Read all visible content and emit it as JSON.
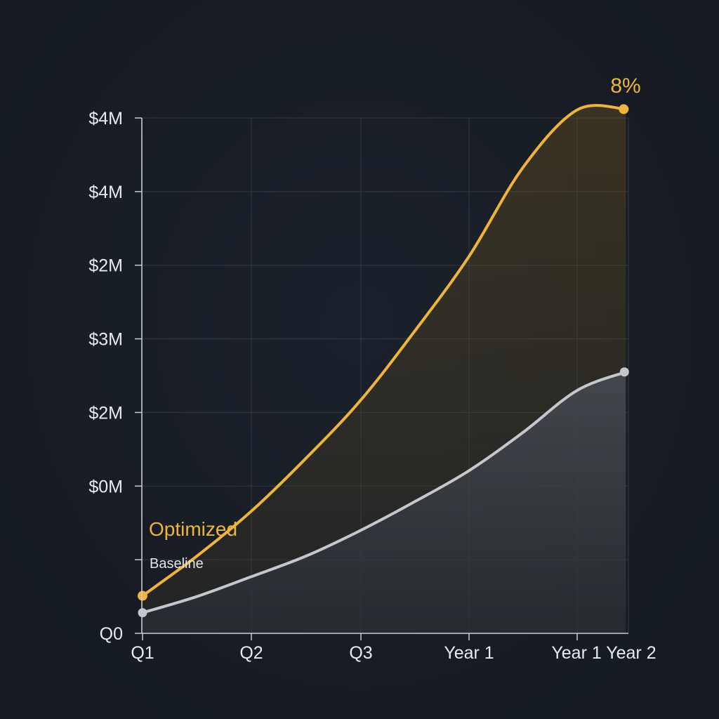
{
  "chart_data": {
    "type": "area",
    "title": "",
    "xlabel": "",
    "ylabel": "",
    "categories": [
      "Q1",
      "Q2",
      "Q3",
      "Year 1",
      "Year 1 Year 2"
    ],
    "y_tick_labels": [
      "Q0",
      "",
      "$0M",
      "$2M",
      "$3M",
      "$2M",
      "$4M",
      "$4M"
    ],
    "ylim": [
      0,
      7
    ],
    "grid": true,
    "series": [
      {
        "name": "Optimized",
        "color": "#f0b43c",
        "x": [
          0,
          0.5,
          1,
          1.5,
          2,
          2.5,
          3,
          3.5,
          4,
          4.45
        ],
        "values": [
          0.51,
          1.05,
          1.66,
          2.38,
          3.17,
          4.11,
          5.12,
          6.33,
          7.11,
          7.12
        ]
      },
      {
        "name": "Baseline",
        "color": "#c4c7cc",
        "x": [
          0,
          0.5,
          1,
          1.5,
          2,
          2.5,
          3,
          3.5,
          4,
          4.45
        ],
        "values": [
          0.28,
          0.5,
          0.77,
          1.05,
          1.4,
          1.79,
          2.21,
          2.73,
          3.3,
          3.55
        ]
      }
    ],
    "annotations": [
      {
        "text": "8%",
        "series": "Optimized",
        "position": "end"
      }
    ],
    "legend": "inline-left"
  }
}
